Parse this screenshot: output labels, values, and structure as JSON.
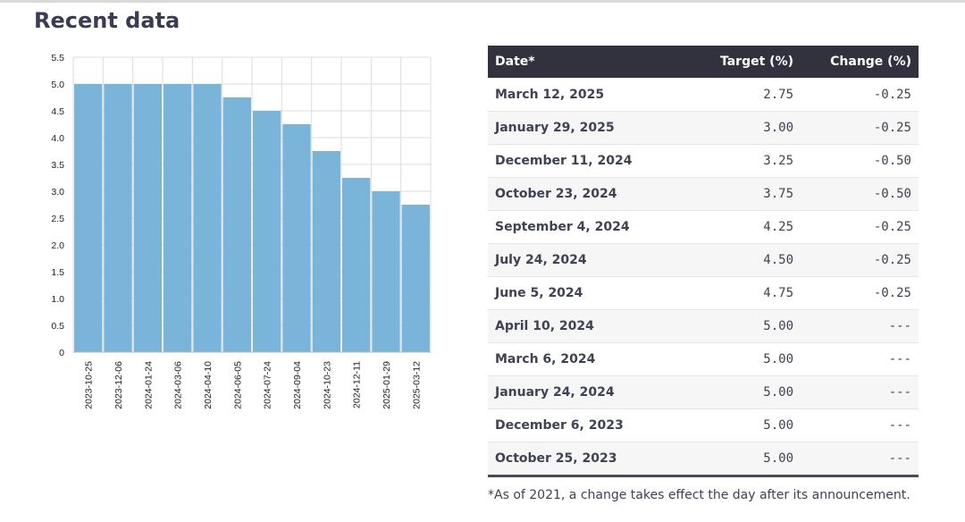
{
  "section_title": "Recent data",
  "chart_data": {
    "type": "bar",
    "categories": [
      "2023-10-25",
      "2023-12-06",
      "2024-01-24",
      "2024-03-06",
      "2024-04-10",
      "2024-06-05",
      "2024-07-24",
      "2024-09-04",
      "2024-10-23",
      "2024-12-11",
      "2025-01-29",
      "2025-03-12"
    ],
    "values": [
      5.0,
      5.0,
      5.0,
      5.0,
      5.0,
      4.75,
      4.5,
      4.25,
      3.75,
      3.25,
      3.0,
      2.75
    ],
    "ylim": [
      0,
      5.5
    ],
    "yticks": [
      "0",
      "0.5",
      "1.0",
      "1.5",
      "2.0",
      "2.5",
      "3.0",
      "3.5",
      "4.0",
      "4.5",
      "5.0",
      "5.5"
    ],
    "grid": true,
    "bar_color": "#7ab4d8"
  },
  "table": {
    "headers": {
      "date": "Date*",
      "target": "Target (%)",
      "change": "Change (%)"
    },
    "rows": [
      {
        "date": "March 12, 2025",
        "target": "2.75",
        "change": "-0.25"
      },
      {
        "date": "January 29, 2025",
        "target": "3.00",
        "change": "-0.25"
      },
      {
        "date": "December 11, 2024",
        "target": "3.25",
        "change": "-0.50"
      },
      {
        "date": "October 23, 2024",
        "target": "3.75",
        "change": "-0.50"
      },
      {
        "date": "September 4, 2024",
        "target": "4.25",
        "change": "-0.25"
      },
      {
        "date": "July 24, 2024",
        "target": "4.50",
        "change": "-0.25"
      },
      {
        "date": "June 5, 2024",
        "target": "4.75",
        "change": "-0.25"
      },
      {
        "date": "April 10, 2024",
        "target": "5.00",
        "change": "---"
      },
      {
        "date": "March 6, 2024",
        "target": "5.00",
        "change": "---"
      },
      {
        "date": "January 24, 2024",
        "target": "5.00",
        "change": "---"
      },
      {
        "date": "December 6, 2023",
        "target": "5.00",
        "change": "---"
      },
      {
        "date": "October 25, 2023",
        "target": "5.00",
        "change": "---"
      }
    ]
  },
  "footnote": "*As of 2021, a change takes effect the day after its announcement."
}
